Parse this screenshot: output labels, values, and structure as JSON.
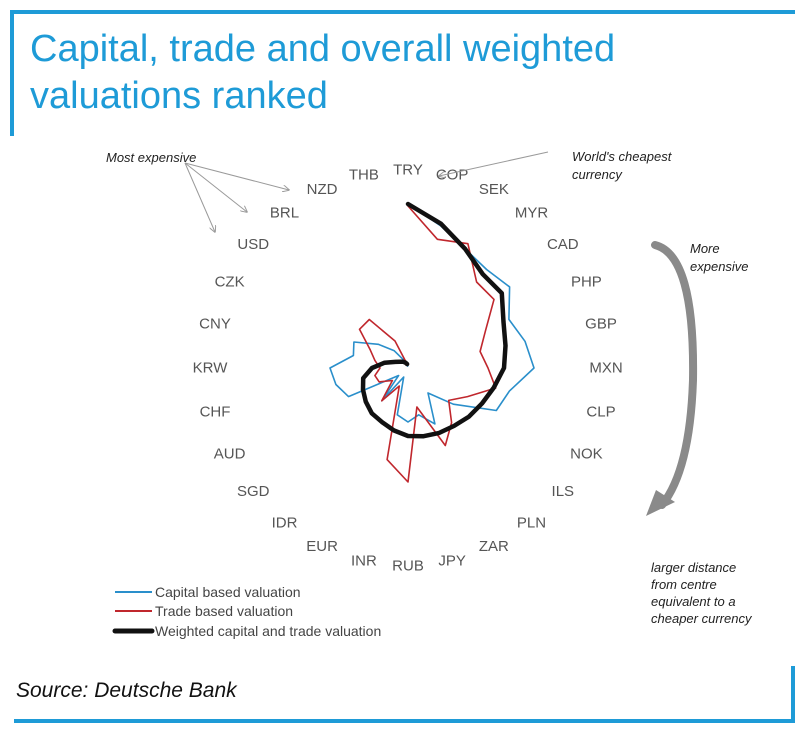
{
  "title": "Capital, trade and overall weighted valuations ranked",
  "source": "Source: Deutsche Bank",
  "annotations": {
    "most_expensive": "Most expensive",
    "worlds_cheapest": [
      "World's cheapest",
      "currency"
    ],
    "more_expensive": [
      "More",
      "expensive"
    ],
    "distance_note": [
      "larger distance",
      "from centre",
      "equivalent to a",
      "cheaper currency"
    ]
  },
  "colors": {
    "accent": "#1e9bd7",
    "capital": "#2a8fcb",
    "trade": "#c0272d",
    "weighted": "#111111"
  },
  "chart_data": {
    "type": "radar",
    "title": "Capital, trade and overall weighted valuations ranked",
    "note": "larger distance from centre equivalent to a cheaper currency",
    "categories": [
      "TRY",
      "COP",
      "SEK",
      "MYR",
      "CAD",
      "PHP",
      "GBP",
      "MXN",
      "CLP",
      "NOK",
      "ILS",
      "PLN",
      "ZAR",
      "JPY",
      "RUB",
      "INR",
      "EUR",
      "IDR",
      "SGD",
      "AUD",
      "CHF",
      "KRW",
      "CNY",
      "CZK",
      "USD",
      "BRL",
      "NZD",
      "THB"
    ],
    "series": [
      {
        "name": "Capital based valuation",
        "values": [
          8.2,
          7.3,
          6.6,
          6.3,
          6.5,
          5.6,
          6.0,
          6.3,
          5.2,
          4.9,
          2.9,
          1.6,
          3.1,
          2.4,
          2.7,
          2.4,
          0.5,
          2.1,
          0.6,
          3.3,
          3.7,
          3.9,
          2.8,
          3.0,
          1.9,
          1.1,
          0.4,
          0.1
        ]
      },
      {
        "name": "Trade based valuation",
        "values": [
          8.1,
          6.6,
          6.9,
          5.5,
          5.5,
          4.3,
          3.7,
          4.0,
          4.5,
          3.3,
          2.6,
          3.5,
          4.3,
          2.0,
          5.7,
          4.7,
          1.0,
          2.1,
          1.0,
          1.6,
          1.7,
          1.4,
          1.7,
          2.1,
          3.1,
          3.1,
          1.5,
          0.2
        ]
      },
      {
        "name": "Weighted capital and trade valuation",
        "values": [
          8.2,
          7.4,
          6.6,
          6.0,
          6.0,
          5.3,
          5.0,
          4.8,
          4.4,
          4.1,
          3.9,
          3.7,
          3.6,
          3.5,
          3.4,
          3.2,
          3.0,
          2.9,
          2.7,
          2.5,
          2.3,
          1.8,
          1.2,
          0.7,
          0.5,
          0.4,
          0.3,
          0.2
        ]
      }
    ]
  }
}
